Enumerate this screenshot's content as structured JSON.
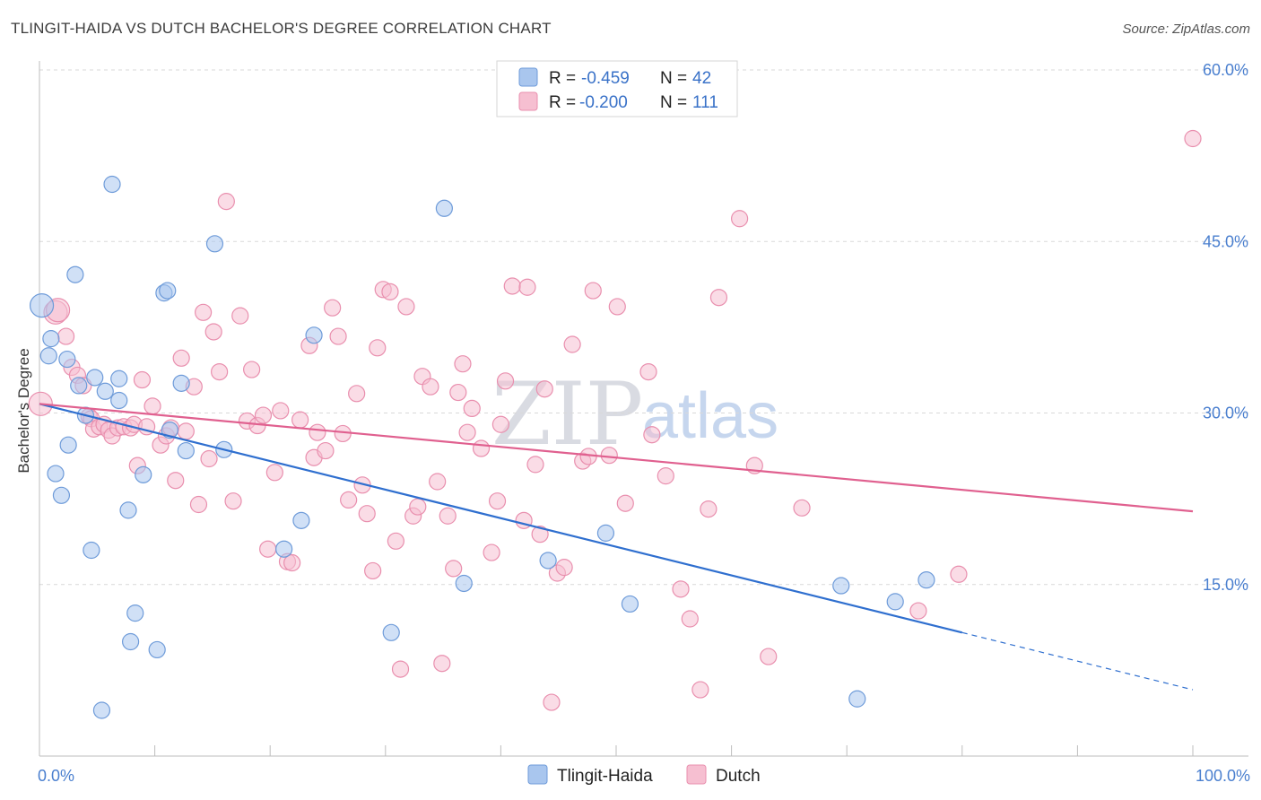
{
  "header": {
    "title": "TLINGIT-HAIDA VS DUTCH BACHELOR'S DEGREE CORRELATION CHART",
    "source": "Source: ZipAtlas.com"
  },
  "watermark": {
    "zip": "ZIP",
    "atlas": "atlas"
  },
  "colors": {
    "blue_fill": "#a9c6ee",
    "blue_stroke": "#6e9bd9",
    "blue_line": "#2f6fcf",
    "pink_fill": "#f6bfd1",
    "pink_stroke": "#e98fae",
    "pink_line": "#e0608f",
    "grid": "#d9d9d9",
    "axis_label": "#4a7fcf"
  },
  "legend": {
    "rows": [
      {
        "r_label": "R = ",
        "r_value": "-0.459",
        "n_label": "N = ",
        "n_value": "42",
        "series": "blue"
      },
      {
        "r_label": "R = ",
        "r_value": "-0.200",
        "n_label": "N = ",
        "n_value": "111",
        "series": "pink"
      }
    ]
  },
  "bottom_legend": {
    "items": [
      "Tlingit-Haida",
      "Dutch"
    ]
  },
  "chart_data": {
    "type": "scatter",
    "title": "TLINGIT-HAIDA VS DUTCH BACHELOR'S DEGREE CORRELATION CHART",
    "xlabel": "",
    "ylabel": "Bachelor's Degree",
    "xlim": [
      0,
      100
    ],
    "ylim": [
      0,
      60
    ],
    "x_tick_labels": [
      "0.0%",
      "100.0%"
    ],
    "y_ticks": [
      15,
      30,
      45,
      60
    ],
    "y_tick_labels": [
      "15.0%",
      "30.0%",
      "45.0%",
      "60.0%"
    ],
    "series": [
      {
        "name": "Tlingit-Haida",
        "color": "blue",
        "r": -0.459,
        "n": 42,
        "trend": {
          "x0": 0,
          "y0": 30.8,
          "x1": 80,
          "y1": 10.8,
          "dash_to_x": 100,
          "dash_to_y": 5.8
        },
        "points": [
          [
            0.2,
            39.4
          ],
          [
            0.8,
            35.0
          ],
          [
            1.0,
            36.5
          ],
          [
            1.4,
            24.7
          ],
          [
            1.9,
            22.8
          ],
          [
            2.4,
            34.7
          ],
          [
            2.5,
            27.2
          ],
          [
            3.1,
            42.1
          ],
          [
            3.4,
            32.4
          ],
          [
            4.0,
            29.8
          ],
          [
            4.5,
            18.0
          ],
          [
            4.8,
            33.1
          ],
          [
            5.4,
            4.0
          ],
          [
            5.7,
            31.9
          ],
          [
            6.3,
            50.0
          ],
          [
            6.9,
            31.1
          ],
          [
            6.9,
            33.0
          ],
          [
            7.7,
            21.5
          ],
          [
            7.9,
            10.0
          ],
          [
            8.3,
            12.5
          ],
          [
            9.0,
            24.6
          ],
          [
            10.2,
            9.3
          ],
          [
            10.8,
            40.5
          ],
          [
            11.1,
            40.7
          ],
          [
            11.3,
            28.5
          ],
          [
            12.3,
            32.6
          ],
          [
            12.7,
            26.7
          ],
          [
            15.2,
            44.8
          ],
          [
            16.0,
            26.8
          ],
          [
            21.2,
            18.1
          ],
          [
            22.7,
            20.6
          ],
          [
            23.8,
            36.8
          ],
          [
            30.5,
            10.8
          ],
          [
            35.1,
            47.9
          ],
          [
            36.8,
            15.1
          ],
          [
            44.1,
            17.1
          ],
          [
            49.1,
            19.5
          ],
          [
            51.2,
            13.3
          ],
          [
            69.5,
            14.9
          ],
          [
            70.9,
            5.0
          ],
          [
            74.2,
            13.5
          ],
          [
            76.9,
            15.4
          ]
        ]
      },
      {
        "name": "Dutch",
        "color": "pink",
        "r": -0.2,
        "n": 111,
        "trend": {
          "x0": 0,
          "y0": 30.8,
          "x1": 100,
          "y1": 21.4
        },
        "points": [
          [
            0.1,
            30.8
          ],
          [
            1.4,
            38.8
          ],
          [
            1.6,
            39.0
          ],
          [
            2.3,
            36.7
          ],
          [
            2.8,
            34.0
          ],
          [
            3.3,
            33.3
          ],
          [
            3.8,
            32.4
          ],
          [
            4.3,
            29.7
          ],
          [
            4.5,
            29.5
          ],
          [
            4.7,
            28.6
          ],
          [
            5.2,
            28.8
          ],
          [
            5.6,
            29.0
          ],
          [
            6.0,
            28.5
          ],
          [
            6.3,
            28.0
          ],
          [
            6.8,
            28.7
          ],
          [
            7.3,
            28.8
          ],
          [
            7.9,
            28.7
          ],
          [
            8.2,
            29.0
          ],
          [
            8.5,
            25.4
          ],
          [
            8.9,
            32.9
          ],
          [
            9.3,
            28.8
          ],
          [
            9.8,
            30.6
          ],
          [
            10.5,
            27.2
          ],
          [
            11.0,
            28.0
          ],
          [
            11.4,
            28.7
          ],
          [
            11.8,
            24.1
          ],
          [
            12.3,
            34.8
          ],
          [
            12.7,
            28.4
          ],
          [
            13.4,
            32.3
          ],
          [
            13.8,
            22.0
          ],
          [
            14.2,
            38.8
          ],
          [
            14.7,
            26.0
          ],
          [
            15.1,
            37.1
          ],
          [
            15.6,
            33.6
          ],
          [
            16.2,
            48.5
          ],
          [
            16.8,
            22.3
          ],
          [
            17.4,
            38.5
          ],
          [
            18.0,
            29.3
          ],
          [
            18.4,
            33.8
          ],
          [
            18.9,
            28.9
          ],
          [
            19.4,
            29.8
          ],
          [
            19.8,
            18.1
          ],
          [
            20.4,
            24.8
          ],
          [
            20.9,
            30.2
          ],
          [
            21.5,
            17.0
          ],
          [
            21.9,
            16.9
          ],
          [
            22.6,
            29.4
          ],
          [
            23.4,
            35.9
          ],
          [
            23.8,
            26.1
          ],
          [
            24.1,
            28.3
          ],
          [
            24.8,
            26.7
          ],
          [
            25.4,
            39.2
          ],
          [
            25.9,
            36.7
          ],
          [
            26.3,
            28.2
          ],
          [
            26.8,
            22.4
          ],
          [
            27.5,
            31.7
          ],
          [
            28.0,
            23.7
          ],
          [
            28.4,
            21.2
          ],
          [
            28.9,
            16.2
          ],
          [
            29.3,
            35.7
          ],
          [
            29.8,
            40.8
          ],
          [
            30.4,
            40.6
          ],
          [
            30.9,
            18.8
          ],
          [
            31.3,
            7.6
          ],
          [
            31.8,
            39.3
          ],
          [
            32.4,
            21.0
          ],
          [
            32.8,
            21.8
          ],
          [
            33.2,
            33.2
          ],
          [
            33.9,
            32.3
          ],
          [
            34.5,
            24.0
          ],
          [
            34.9,
            8.1
          ],
          [
            35.4,
            21.0
          ],
          [
            35.9,
            16.4
          ],
          [
            36.3,
            31.8
          ],
          [
            36.7,
            34.3
          ],
          [
            37.1,
            28.3
          ],
          [
            37.5,
            30.4
          ],
          [
            38.3,
            26.9
          ],
          [
            39.2,
            17.8
          ],
          [
            39.7,
            22.3
          ],
          [
            40.4,
            32.8
          ],
          [
            40.0,
            29.0
          ],
          [
            41.0,
            41.1
          ],
          [
            42.0,
            20.6
          ],
          [
            42.3,
            41.0
          ],
          [
            43.0,
            25.5
          ],
          [
            43.4,
            19.4
          ],
          [
            43.8,
            32.1
          ],
          [
            44.4,
            4.7
          ],
          [
            44.9,
            16.0
          ],
          [
            45.5,
            16.5
          ],
          [
            46.2,
            36.0
          ],
          [
            47.1,
            25.8
          ],
          [
            47.6,
            26.2
          ],
          [
            48.0,
            40.7
          ],
          [
            49.4,
            26.3
          ],
          [
            50.1,
            39.3
          ],
          [
            50.8,
            22.1
          ],
          [
            52.8,
            33.6
          ],
          [
            53.1,
            28.1
          ],
          [
            54.3,
            24.5
          ],
          [
            55.6,
            14.6
          ],
          [
            56.4,
            12.0
          ],
          [
            57.3,
            5.8
          ],
          [
            58.0,
            21.6
          ],
          [
            58.9,
            40.1
          ],
          [
            60.7,
            47.0
          ],
          [
            62.0,
            25.4
          ],
          [
            63.2,
            8.7
          ],
          [
            66.1,
            21.7
          ],
          [
            76.2,
            12.7
          ],
          [
            79.7,
            15.9
          ],
          [
            100.0,
            54.0
          ]
        ]
      }
    ]
  }
}
